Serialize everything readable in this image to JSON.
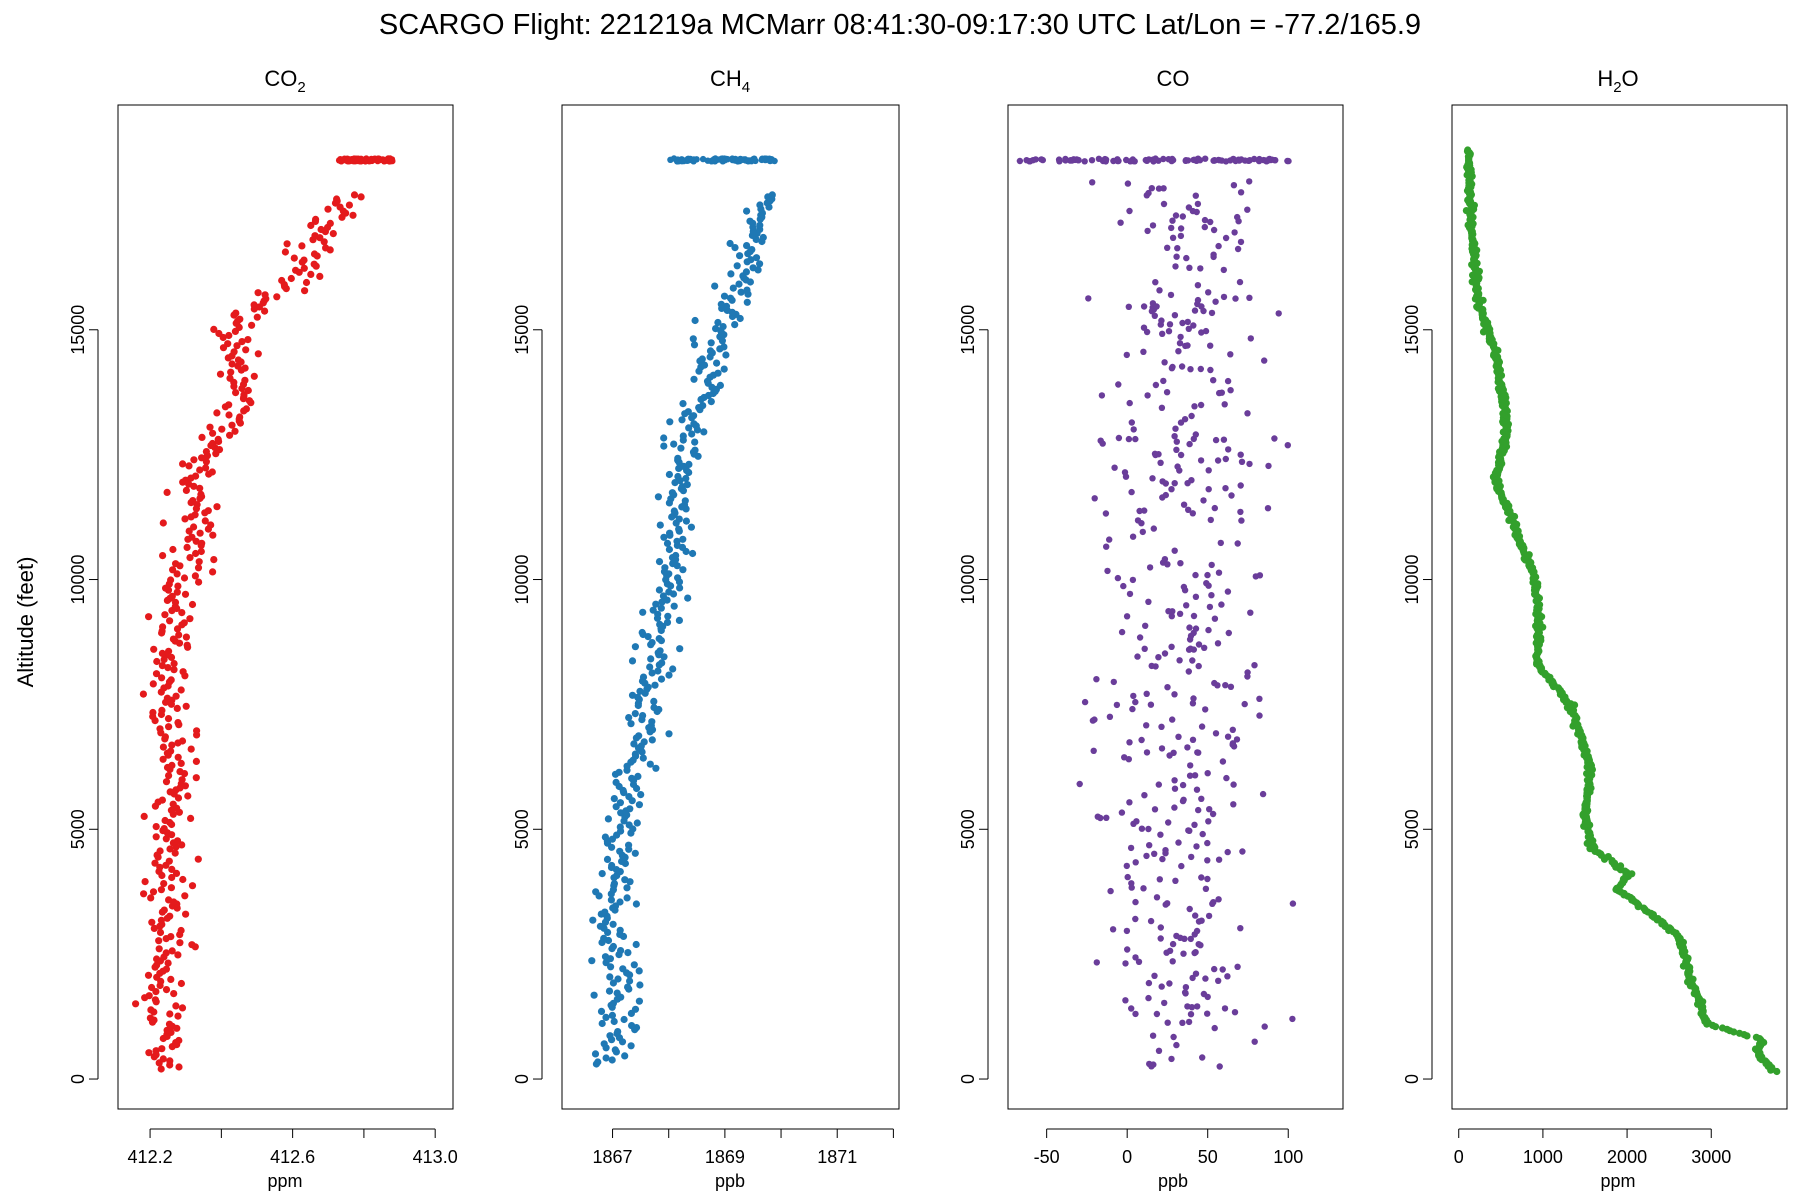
{
  "figure": {
    "title": "SCARGO Flight: 221219a  MCMarr  08:41:30-09:17:30 UTC  Lat/Lon = -77.2/165.9",
    "ylabel": "Altitude (feet)"
  },
  "chart_data": [
    {
      "type": "scatter",
      "title_main": "CO",
      "title_sub": "2",
      "xlabel": "ppm",
      "ylabel": "Altitude (feet)",
      "color": "#e41a1c",
      "xlim": [
        412.11,
        413.05
      ],
      "ylim": [
        -600,
        19500
      ],
      "xticks": [
        412.2,
        412.4,
        412.6,
        412.8,
        413.0
      ],
      "xtick_labels": [
        "412.2",
        "",
        "412.6",
        "",
        "413.0"
      ],
      "yticks": [
        0,
        5000,
        10000,
        15000
      ],
      "ytick_labels": [
        "0",
        "5000",
        "10000",
        "15000"
      ],
      "profile": [
        [
          200,
          412.24
        ],
        [
          1000,
          412.24
        ],
        [
          2000,
          412.24
        ],
        [
          3000,
          412.26
        ],
        [
          4000,
          412.24
        ],
        [
          5000,
          412.26
        ],
        [
          6000,
          412.27
        ],
        [
          7000,
          412.26
        ],
        [
          8000,
          412.25
        ],
        [
          9000,
          412.26
        ],
        [
          10000,
          412.29
        ],
        [
          11000,
          412.33
        ],
        [
          12000,
          412.31
        ],
        [
          13000,
          412.42
        ],
        [
          14000,
          412.46
        ],
        [
          15000,
          412.43
        ],
        [
          16000,
          412.62
        ],
        [
          17000,
          412.68
        ],
        [
          17700,
          412.78
        ]
      ],
      "cluster": {
        "alt": 18400,
        "xmin": 412.73,
        "xmax": 412.88
      },
      "spread": 0.032,
      "count": 430,
      "seed": 11
    },
    {
      "type": "scatter",
      "title_main": "CH",
      "title_sub": "4",
      "xlabel": "ppb",
      "ylabel": "Altitude (feet)",
      "color": "#1f78b4",
      "xlim": [
        1866.1,
        1872.1
      ],
      "ylim": [
        -600,
        19500
      ],
      "xticks": [
        1867,
        1868,
        1869,
        1870,
        1871,
        1872
      ],
      "xtick_labels": [
        "1867",
        "",
        "1869",
        "",
        "1871",
        ""
      ],
      "yticks": [
        0,
        5000,
        10000,
        15000
      ],
      "ytick_labels": [
        "0",
        "5000",
        "10000",
        "15000"
      ],
      "profile": [
        [
          300,
          1866.9
        ],
        [
          1000,
          1867.2
        ],
        [
          2000,
          1867.1
        ],
        [
          3000,
          1867.0
        ],
        [
          4000,
          1867.0
        ],
        [
          5000,
          1867.1
        ],
        [
          6000,
          1867.3
        ],
        [
          7000,
          1867.5
        ],
        [
          8000,
          1867.7
        ],
        [
          9000,
          1867.8
        ],
        [
          10000,
          1868.0
        ],
        [
          11000,
          1868.1
        ],
        [
          12000,
          1868.2
        ],
        [
          13000,
          1868.4
        ],
        [
          14000,
          1868.7
        ],
        [
          15000,
          1868.9
        ],
        [
          16000,
          1869.3
        ],
        [
          17000,
          1869.5
        ],
        [
          17700,
          1869.8
        ]
      ],
      "cluster": {
        "alt": 18400,
        "xmin": 1868.0,
        "xmax": 1869.9
      },
      "spread": 0.17,
      "count": 430,
      "seed": 23
    },
    {
      "type": "scatter",
      "title_main": "CO",
      "title_sub": "",
      "xlabel": "ppb",
      "ylabel": "Altitude (feet)",
      "color": "#6a3d9a",
      "xlim": [
        -74,
        134
      ],
      "ylim": [
        -600,
        19500
      ],
      "xticks": [
        -50,
        0,
        50,
        100
      ],
      "xtick_labels": [
        "-50",
        "0",
        "50",
        "100"
      ],
      "yticks": [
        0,
        5000,
        10000,
        15000
      ],
      "ytick_labels": [
        "0",
        "5000",
        "10000",
        "15000"
      ],
      "profile": [
        [
          200,
          30
        ],
        [
          5000,
          30
        ],
        [
          10000,
          32
        ],
        [
          15000,
          34
        ],
        [
          18000,
          35
        ]
      ],
      "cluster": {
        "alt": 18400,
        "xmin": -68,
        "xmax": 104
      },
      "spread": 24,
      "count": 470,
      "seed": 37
    },
    {
      "type": "scatter",
      "title_main": "H",
      "title_sub": "2",
      "title_tail": "O",
      "xlabel": "ppm",
      "ylabel": "Altitude (feet)",
      "color": "#33a02c",
      "xlim": [
        -80,
        3900
      ],
      "ylim": [
        -600,
        19500
      ],
      "xticks": [
        0,
        1000,
        2000,
        3000
      ],
      "xtick_labels": [
        "0",
        "1000",
        "2000",
        "3000"
      ],
      "yticks": [
        0,
        5000,
        10000,
        15000
      ],
      "ytick_labels": [
        "0",
        "5000",
        "10000",
        "15000"
      ],
      "profile": [
        [
          150,
          3750
        ],
        [
          500,
          3560
        ],
        [
          800,
          3600
        ],
        [
          1100,
          2950
        ],
        [
          2000,
          2760
        ],
        [
          2900,
          2600
        ],
        [
          3800,
          1880
        ],
        [
          4100,
          2030
        ],
        [
          4600,
          1600
        ],
        [
          5300,
          1500
        ],
        [
          6200,
          1570
        ],
        [
          7500,
          1320
        ],
        [
          8300,
          930
        ],
        [
          9000,
          950
        ],
        [
          10000,
          910
        ],
        [
          11000,
          680
        ],
        [
          12000,
          430
        ],
        [
          13000,
          580
        ],
        [
          14500,
          450
        ],
        [
          15500,
          240
        ],
        [
          17000,
          150
        ],
        [
          18600,
          120
        ]
      ],
      "cluster": null,
      "spread": 20,
      "count": 700,
      "seed": 53
    }
  ]
}
